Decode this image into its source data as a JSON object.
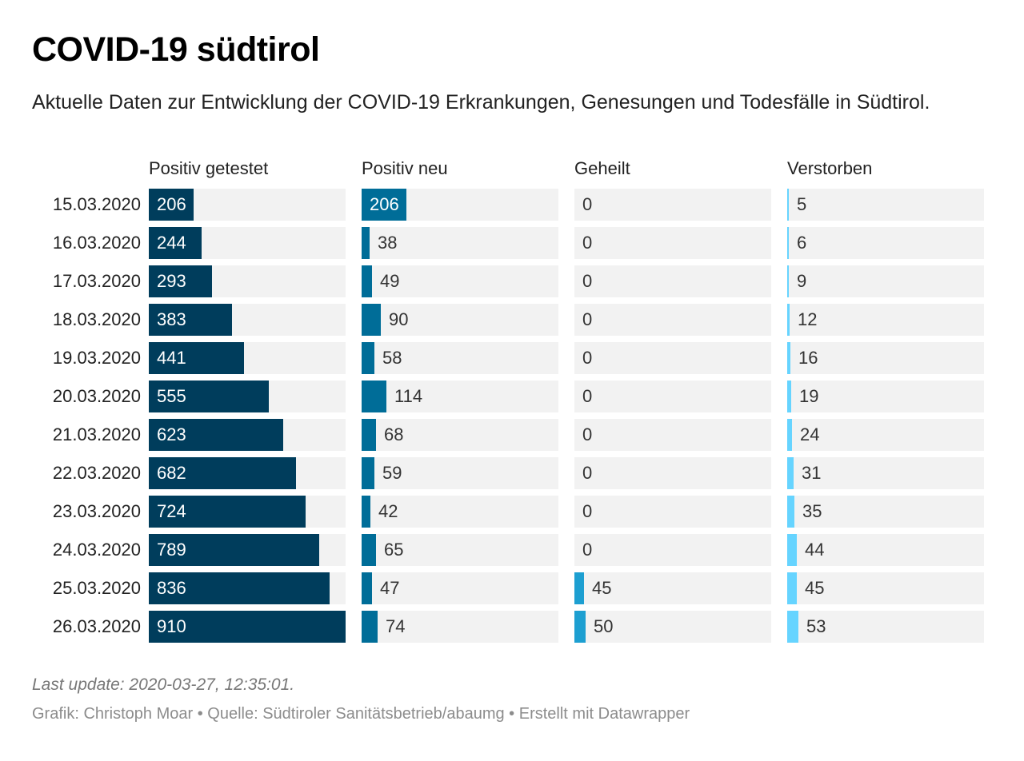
{
  "title": "COVID-19 südtirol",
  "subtitle": "Aktuelle Daten zur Entwicklung der COVID-19 Erkrankungen, Genesungen und Todesfälle in Südtirol.",
  "footer": {
    "note": "Last update: 2020-03-27, 12:35:01.",
    "source": "Grafik: Christoph Moar • Quelle: Südtiroler Sanitätsbetrieb/abaumg • Erstellt mit Datawrapper"
  },
  "chart_data": {
    "type": "bar",
    "categories": [
      "15.03.2020",
      "16.03.2020",
      "17.03.2020",
      "18.03.2020",
      "19.03.2020",
      "20.03.2020",
      "21.03.2020",
      "22.03.2020",
      "23.03.2020",
      "24.03.2020",
      "25.03.2020",
      "26.03.2020"
    ],
    "series": [
      {
        "name": "Positiv getestet",
        "color": "#003d5c",
        "values": [
          206,
          244,
          293,
          383,
          441,
          555,
          623,
          682,
          724,
          789,
          836,
          910
        ]
      },
      {
        "name": "Positiv neu",
        "color": "#006d98",
        "values": [
          206,
          38,
          49,
          90,
          58,
          114,
          68,
          59,
          42,
          65,
          47,
          74
        ]
      },
      {
        "name": "Geheilt",
        "color": "#1d9fd1",
        "values": [
          0,
          0,
          0,
          0,
          0,
          0,
          0,
          0,
          0,
          0,
          45,
          50
        ]
      },
      {
        "name": "Verstorben",
        "color": "#66d4ff",
        "values": [
          5,
          6,
          9,
          12,
          16,
          19,
          24,
          31,
          35,
          44,
          45,
          53
        ]
      }
    ],
    "xlim": [
      0,
      910
    ],
    "grid": false,
    "legend": "column headers"
  }
}
